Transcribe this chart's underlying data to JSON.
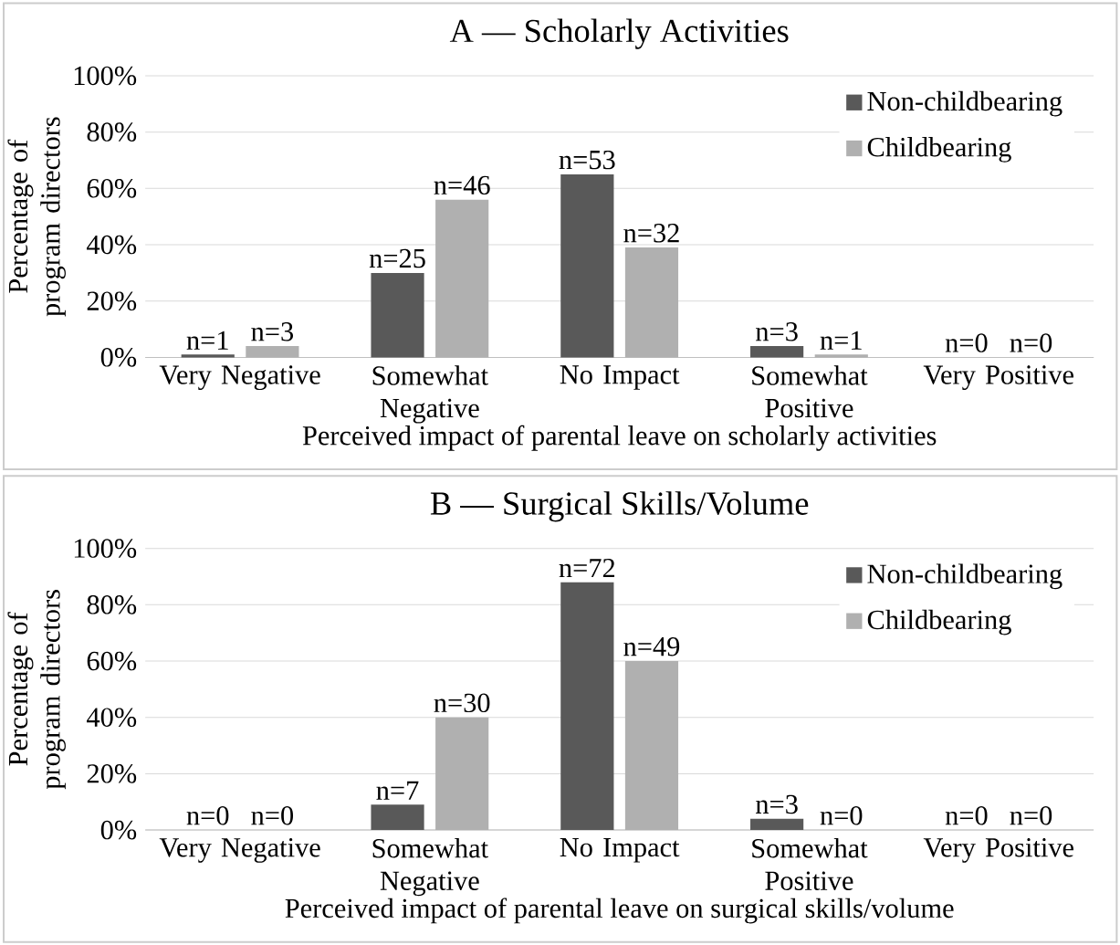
{
  "chart_data": [
    {
      "type": "bar",
      "title": "A — Scholarly Activities",
      "xlabel": "Perceived impact of parental leave on scholarly activities",
      "ylabel": "Percentage of program directors",
      "categories": [
        "Very Negative",
        "Somewhat Negative",
        "No Impact",
        "Somewhat Positive",
        "Very Positive"
      ],
      "series": [
        {
          "name": "Non-childbearing",
          "color": "#595959",
          "values": [
            1,
            30,
            65,
            4,
            0
          ]
        },
        {
          "name": "Childbearing",
          "color": "#b0b0b0",
          "values": [
            4,
            56,
            39,
            1,
            0
          ]
        }
      ],
      "annotations": [
        "n=1",
        "n=3",
        "n=25",
        "n=46",
        "n=53",
        "n=32",
        "n=3",
        "n=1",
        "n=0",
        "n=0"
      ],
      "ylim": [
        0,
        100
      ],
      "yticks": [
        {
          "value": 0,
          "label": "0%"
        },
        {
          "value": 20,
          "label": "20%"
        },
        {
          "value": 40,
          "label": "40%"
        },
        {
          "value": 60,
          "label": "60%"
        },
        {
          "value": 80,
          "label": "80%"
        },
        {
          "value": 100,
          "label": "100%"
        }
      ],
      "grid": "y",
      "legend": "top right"
    },
    {
      "type": "bar",
      "title": "B — Surgical Skills/Volume",
      "xlabel": "Perceived impact of parental leave on surgical skills/volume",
      "ylabel": "Percentage of program directors",
      "categories": [
        "Very Negative",
        "Somewhat Negative",
        "No Impact",
        "Somewhat Positive",
        "Very Positive"
      ],
      "series": [
        {
          "name": "Non-childbearing",
          "color": "#595959",
          "values": [
            0,
            9,
            88,
            4,
            0
          ]
        },
        {
          "name": "Childbearing",
          "color": "#b0b0b0",
          "values": [
            0,
            40,
            60,
            0,
            0
          ]
        }
      ],
      "annotations": [
        "n=0",
        "n=0",
        "n=7",
        "n=30",
        "n=72",
        "n=49",
        "n=3",
        "n=0",
        "n=0",
        "n=0"
      ],
      "ylim": [
        0,
        100
      ],
      "yticks": [
        {
          "value": 0,
          "label": "0%"
        },
        {
          "value": 20,
          "label": "20%"
        },
        {
          "value": 40,
          "label": "40%"
        },
        {
          "value": 60,
          "label": "60%"
        },
        {
          "value": 80,
          "label": "80%"
        },
        {
          "value": 100,
          "label": "100%"
        }
      ],
      "grid": "y",
      "legend": "top right"
    }
  ]
}
